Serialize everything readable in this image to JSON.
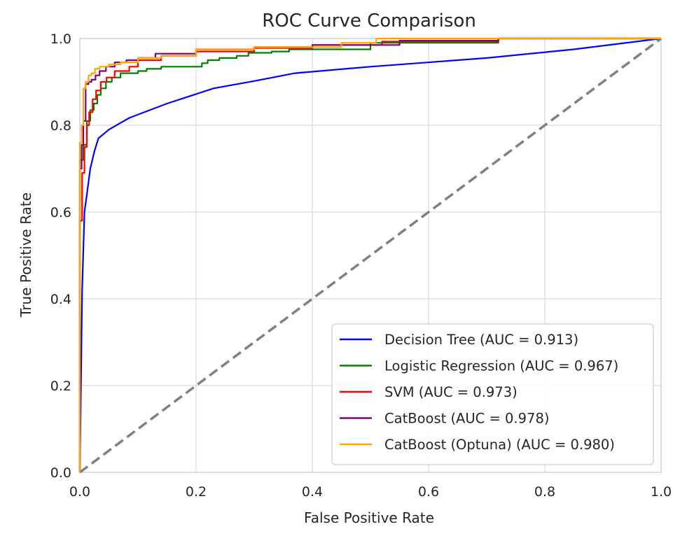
{
  "chart_data": {
    "type": "line",
    "title": "ROC Curve Comparison",
    "xlabel": "False Positive Rate",
    "ylabel": "True Positive Rate",
    "xlim": [
      0.0,
      1.0
    ],
    "ylim": [
      0.0,
      1.0
    ],
    "xticks": [
      "0.0",
      "0.2",
      "0.4",
      "0.6",
      "0.8",
      "1.0"
    ],
    "yticks": [
      "0.0",
      "0.2",
      "0.4",
      "0.6",
      "0.8",
      "1.0"
    ],
    "grid": true,
    "legend_position": "lower-right",
    "baseline": {
      "style": "dashed",
      "color": "#808080",
      "x": [
        0.0,
        1.0
      ],
      "y": [
        0.0,
        1.0
      ]
    },
    "series": [
      {
        "name": "Decision Tree (AUC = 0.913)",
        "color": "#0000ff",
        "x": [
          0.0,
          0.004,
          0.008,
          0.012,
          0.018,
          0.025,
          0.032,
          0.05,
          0.085,
          0.15,
          0.23,
          0.3,
          0.37,
          0.5,
          0.7,
          0.85,
          1.0
        ],
        "y": [
          0.0,
          0.42,
          0.6,
          0.64,
          0.7,
          0.74,
          0.77,
          0.79,
          0.817,
          0.85,
          0.885,
          0.902,
          0.92,
          0.935,
          0.955,
          0.975,
          1.0
        ]
      },
      {
        "name": "Logistic Regression (AUC = 0.967)",
        "color": "#008000",
        "x": [
          0.0,
          0.0,
          0.006,
          0.006,
          0.012,
          0.012,
          0.018,
          0.018,
          0.024,
          0.024,
          0.03,
          0.03,
          0.036,
          0.036,
          0.045,
          0.045,
          0.055,
          0.055,
          0.07,
          0.07,
          0.1,
          0.1,
          0.115,
          0.115,
          0.14,
          0.14,
          0.21,
          0.21,
          0.22,
          0.22,
          0.24,
          0.24,
          0.27,
          0.27,
          0.29,
          0.29,
          0.33,
          0.33,
          0.36,
          0.36,
          0.5,
          0.5,
          0.72,
          0.72,
          1.0
        ],
        "y": [
          0.0,
          0.72,
          0.72,
          0.755,
          0.755,
          0.81,
          0.81,
          0.835,
          0.835,
          0.85,
          0.85,
          0.87,
          0.87,
          0.885,
          0.885,
          0.9,
          0.9,
          0.91,
          0.91,
          0.92,
          0.92,
          0.925,
          0.925,
          0.93,
          0.93,
          0.935,
          0.935,
          0.943,
          0.943,
          0.95,
          0.95,
          0.955,
          0.955,
          0.96,
          0.96,
          0.967,
          0.967,
          0.97,
          0.97,
          0.975,
          0.975,
          0.99,
          0.99,
          1.0,
          1.0
        ]
      },
      {
        "name": "SVM (AUC = 0.973)",
        "color": "#ff0000",
        "x": [
          0.0,
          0.0,
          0.004,
          0.004,
          0.008,
          0.008,
          0.012,
          0.012,
          0.016,
          0.016,
          0.022,
          0.022,
          0.028,
          0.028,
          0.036,
          0.036,
          0.046,
          0.046,
          0.06,
          0.06,
          0.085,
          0.085,
          0.1,
          0.1,
          0.14,
          0.14,
          0.2,
          0.2,
          0.3,
          0.3,
          0.4,
          0.4,
          0.52,
          0.52,
          0.72,
          0.72,
          1.0
        ],
        "y": [
          0.0,
          0.58,
          0.58,
          0.69,
          0.69,
          0.75,
          0.75,
          0.8,
          0.8,
          0.83,
          0.83,
          0.86,
          0.86,
          0.88,
          0.88,
          0.9,
          0.9,
          0.91,
          0.91,
          0.925,
          0.925,
          0.935,
          0.935,
          0.95,
          0.95,
          0.96,
          0.96,
          0.97,
          0.97,
          0.978,
          0.978,
          0.985,
          0.985,
          0.993,
          0.993,
          1.0,
          1.0
        ]
      },
      {
        "name": "CatBoost (AUC = 0.978)",
        "color": "#800080",
        "x": [
          0.0,
          0.0,
          0.003,
          0.003,
          0.006,
          0.006,
          0.01,
          0.01,
          0.015,
          0.015,
          0.02,
          0.02,
          0.027,
          0.027,
          0.034,
          0.034,
          0.045,
          0.045,
          0.06,
          0.06,
          0.08,
          0.08,
          0.1,
          0.1,
          0.13,
          0.13,
          0.2,
          0.2,
          0.3,
          0.3,
          0.4,
          0.4,
          0.55,
          0.55,
          0.72,
          0.72,
          1.0
        ],
        "y": [
          0.0,
          0.7,
          0.7,
          0.755,
          0.755,
          0.81,
          0.81,
          0.895,
          0.895,
          0.9,
          0.9,
          0.905,
          0.905,
          0.915,
          0.915,
          0.925,
          0.925,
          0.935,
          0.935,
          0.945,
          0.945,
          0.95,
          0.95,
          0.955,
          0.955,
          0.965,
          0.965,
          0.975,
          0.975,
          0.98,
          0.98,
          0.985,
          0.985,
          0.995,
          0.995,
          1.0,
          1.0
        ]
      },
      {
        "name": "CatBoost (Optuna) (AUC = 0.980)",
        "color": "#ffa500",
        "x": [
          0.0,
          0.0,
          0.003,
          0.003,
          0.006,
          0.006,
          0.01,
          0.01,
          0.015,
          0.015,
          0.02,
          0.02,
          0.026,
          0.026,
          0.034,
          0.034,
          0.05,
          0.05,
          0.07,
          0.07,
          0.1,
          0.1,
          0.14,
          0.14,
          0.2,
          0.2,
          0.3,
          0.3,
          0.45,
          0.45,
          0.51,
          0.51,
          0.7,
          0.7,
          1.0
        ],
        "y": [
          0.0,
          0.76,
          0.76,
          0.8,
          0.8,
          0.885,
          0.885,
          0.9,
          0.9,
          0.915,
          0.915,
          0.92,
          0.92,
          0.93,
          0.93,
          0.935,
          0.935,
          0.94,
          0.94,
          0.945,
          0.945,
          0.955,
          0.955,
          0.96,
          0.96,
          0.975,
          0.975,
          0.98,
          0.98,
          0.99,
          0.99,
          1.0,
          1.0,
          1.0,
          1.0
        ]
      }
    ]
  }
}
